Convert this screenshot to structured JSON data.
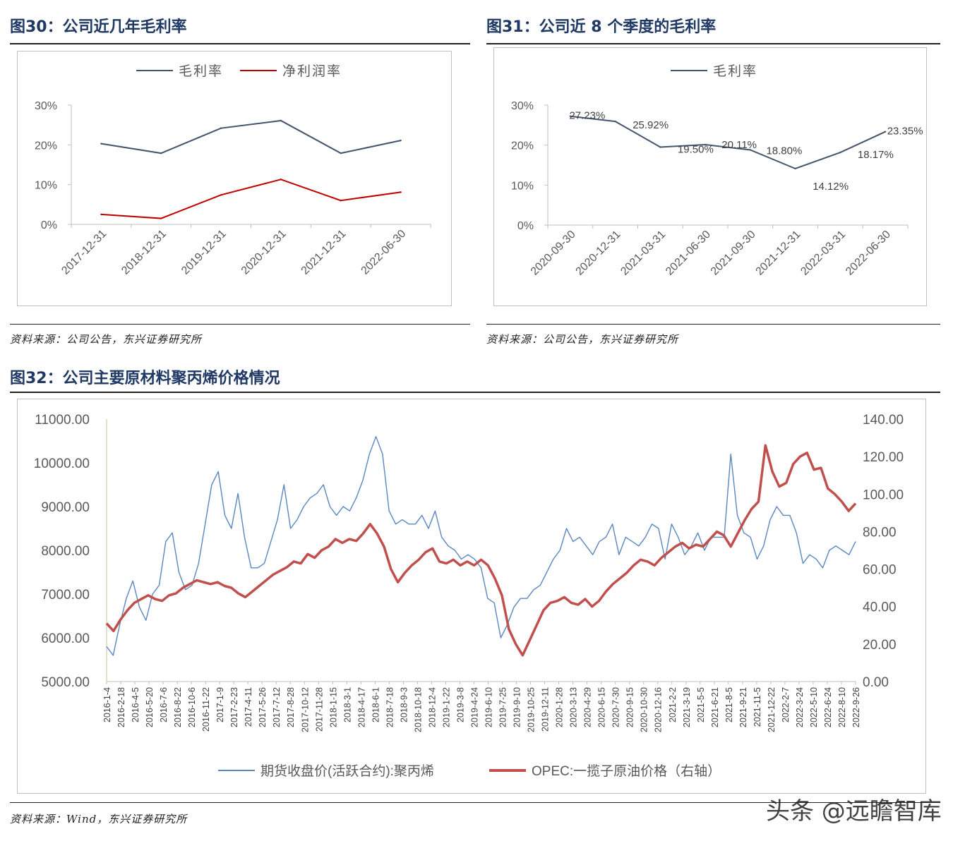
{
  "figures": {
    "fig30": {
      "title": "图30：公司近几年毛利率",
      "source": "资料来源：公司公告，东兴证券研究所"
    },
    "fig31": {
      "title": "图31：公司近 8 个季度的毛利率",
      "source": "资料来源：公司公告，东兴证券研究所"
    },
    "fig32": {
      "title": "图32：公司主要原材料聚丙烯价格情况",
      "source": "资料来源：Wind，东兴证券研究所"
    }
  },
  "watermark": "头条 @远瞻智库",
  "chart_data": [
    {
      "id": "fig30",
      "type": "line",
      "categories": [
        "2017-12-31",
        "2018-12-31",
        "2019-12-31",
        "2020-12-31",
        "2021-12-31",
        "2022-06-30"
      ],
      "y_ticks": [
        "0%",
        "10%",
        "20%",
        "30%"
      ],
      "ylim": [
        0,
        30
      ],
      "legend_position": "top",
      "series": [
        {
          "name": "毛利率",
          "color": "#44546a",
          "values": [
            20.3,
            17.9,
            24.2,
            26.1,
            17.9,
            21.1
          ]
        },
        {
          "name": "净利润率",
          "color": "#c00000",
          "values": [
            2.5,
            1.5,
            7.4,
            11.3,
            6.0,
            8.1
          ]
        }
      ]
    },
    {
      "id": "fig31",
      "type": "line",
      "categories": [
        "2020-09-30",
        "2020-12-31",
        "2021-03-31",
        "2021-06-30",
        "2021-09-30",
        "2021-12-31",
        "2022-03-31",
        "2022-06-30"
      ],
      "y_ticks": [
        "0%",
        "10%",
        "20%",
        "30%"
      ],
      "ylim": [
        0,
        30
      ],
      "legend_position": "top",
      "series": [
        {
          "name": "毛利率",
          "color": "#44546a",
          "values": [
            27.23,
            25.92,
            19.5,
            20.11,
            18.8,
            14.12,
            18.17,
            23.35
          ]
        }
      ],
      "data_labels": [
        "27.23%",
        "25.92%",
        "19.50%",
        "20.11%",
        "18.80%",
        "14.12%",
        "18.17%",
        "23.35%"
      ]
    },
    {
      "id": "fig32",
      "type": "line",
      "x_ticks": [
        "2016-1-4",
        "2016-2-18",
        "2016-4-5",
        "2016-5-20",
        "2016-7-6",
        "2016-8-22",
        "2016-10-6",
        "2016-11-22",
        "2017-1-9",
        "2017-2-23",
        "2017-4-11",
        "2017-5-26",
        "2017-7-12",
        "2017-8-28",
        "2017-10-12",
        "2017-11-28",
        "2018-1-15",
        "2018-3-1",
        "2018-4-17",
        "2018-6-1",
        "2018-7-18",
        "2018-9-3",
        "2018-10-18",
        "2018-12-4",
        "2019-1-22",
        "2019-3-8",
        "2019-4-24",
        "2019-6-10",
        "2019-7-25",
        "2019-9-10",
        "2019-10-25",
        "2019-12-11",
        "2020-1-28",
        "2020-3-13",
        "2020-4-29",
        "2020-6-15",
        "2020-7-30",
        "2020-9-15",
        "2020-10-30",
        "2020-12-16",
        "2021-2-2",
        "2021-3-19",
        "2021-5-5",
        "2021-6-21",
        "2021-8-5",
        "2021-9-21",
        "2021-11-5",
        "2021-12-22",
        "2022-2-7",
        "2022-3-24",
        "2022-5-10",
        "2022-6-24",
        "2022-8-10",
        "2022-9-26"
      ],
      "y_left_ticks": [
        "5000.00",
        "6000.00",
        "7000.00",
        "8000.00",
        "9000.00",
        "10000.00",
        "11000.00"
      ],
      "y_left_lim": [
        5000,
        11000
      ],
      "y_right_ticks": [
        "0.00",
        "20.00",
        "40.00",
        "60.00",
        "80.00",
        "100.00",
        "120.00",
        "140.00"
      ],
      "y_right_lim": [
        0,
        140
      ],
      "legend_position": "bottom",
      "series": [
        {
          "name": "期货收盘价(活跃合约):聚丙烯",
          "axis": "left",
          "color": "#5b87c0",
          "values": [
            5800,
            5600,
            6300,
            6900,
            7300,
            6700,
            6400,
            7000,
            7200,
            8200,
            8400,
            7500,
            7100,
            7200,
            7700,
            8600,
            9500,
            9800,
            8800,
            8500,
            9300,
            8300,
            7600,
            7600,
            7700,
            8200,
            8700,
            9500,
            8500,
            8700,
            9000,
            9200,
            9300,
            9500,
            9000,
            8800,
            9000,
            8900,
            9200,
            9600,
            10200,
            10600,
            10200,
            8900,
            8600,
            8700,
            8600,
            8600,
            8800,
            8500,
            8900,
            8300,
            8100,
            8000,
            7800,
            7900,
            7800,
            7600,
            6900,
            6800,
            6000,
            6300,
            6700,
            6900,
            6900,
            7100,
            7200,
            7500,
            7800,
            8000,
            8500,
            8200,
            8300,
            8100,
            7900,
            8200,
            8300,
            8600,
            7900,
            8300,
            8200,
            8100,
            8300,
            8600,
            8500,
            7800,
            8600,
            8300,
            7900,
            8100,
            8400,
            8000,
            8300,
            8300,
            8300,
            10200,
            8800,
            8400,
            8300,
            7800,
            8100,
            8700,
            9000,
            8800,
            8800,
            8400,
            7700,
            7900,
            7800,
            7600,
            8000,
            8100,
            8000,
            7900,
            8200
          ],
          "note": "weekly-ish sampled closing prices"
        },
        {
          "name": "OPEC:一揽子原油价格（右轴）",
          "axis": "right",
          "color": "#c0504d",
          "values": [
            31,
            27,
            33,
            38,
            42,
            44,
            46,
            44,
            43,
            46,
            47,
            50,
            52,
            54,
            53,
            52,
            53,
            51,
            50,
            47,
            45,
            48,
            51,
            54,
            57,
            59,
            61,
            64,
            63,
            68,
            66,
            70,
            72,
            76,
            74,
            76,
            75,
            79,
            84,
            79,
            72,
            60,
            53,
            58,
            62,
            65,
            69,
            71,
            64,
            63,
            65,
            62,
            64,
            62,
            65,
            62,
            55,
            46,
            28,
            20,
            14,
            22,
            30,
            38,
            42,
            43,
            45,
            42,
            41,
            44,
            40,
            43,
            48,
            52,
            55,
            58,
            62,
            65,
            64,
            62,
            66,
            69,
            72,
            74,
            71,
            73,
            72,
            76,
            80,
            78,
            72,
            79,
            86,
            92,
            96,
            126,
            112,
            104,
            106,
            116,
            120,
            122,
            113,
            114,
            103,
            100,
            96,
            91,
            95
          ],
          "note": "weekly-ish sampled prices"
        }
      ]
    }
  ]
}
